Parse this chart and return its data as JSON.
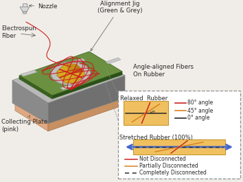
{
  "bg_color": "#f0ede8",
  "labels": {
    "nozzle": "Nozzle",
    "fiber": "Electrospun\nFiber",
    "alignment_jig": "Alignment Jig\n(Green & Grey)",
    "angle_fibers": "Angle-aligned Fibers\nOn Rubber",
    "collecting_plate": "Collecting Plate\n(pink)",
    "relaxed_rubber": "Relaxed  Rubber",
    "stretched_rubber": "Stretched Rubber (100%)",
    "angle_80": "80° angle",
    "angle_45": "45° angle",
    "angle_0": "0° angle",
    "not_disconnected": "Not Disconnected",
    "partially_disconnected": "Partially Disconnected",
    "completely_disconnected": "Completely Disconnected"
  },
  "colors": {
    "gray_top": "#b8b8b8",
    "gray_side_front": "#8a8a8a",
    "gray_side_right": "#707070",
    "green_top": "#6a9040",
    "green_side_front": "#3a6020",
    "green_side_right": "#2a5018",
    "white_pad": "#d0d0d0",
    "yellow_gold": "#d4a820",
    "yellow_gold_tri": "#c09018",
    "pink_top": "#f0c8a0",
    "pink_front": "#e0a880",
    "pink_right": "#c89060",
    "red_fiber": "#cc2020",
    "orange_fiber": "#d88020",
    "black_fiber": "#282828",
    "rubber_bg": "#f0c060",
    "rubber_border": "#c09020",
    "inset_border": "#909090",
    "arrow_blue": "#4468cc",
    "text_dark": "#282828"
  }
}
